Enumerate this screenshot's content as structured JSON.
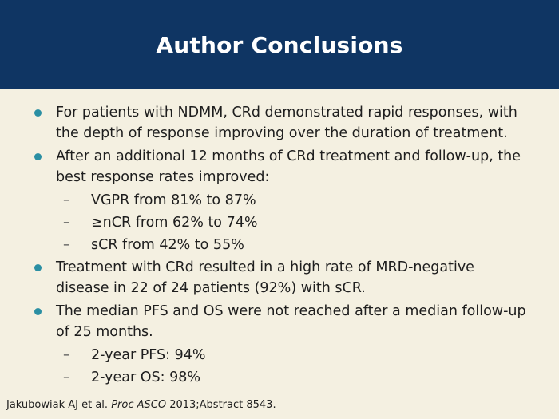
{
  "slide": {
    "title": "Author Conclusions",
    "bullets": [
      {
        "text": "For patients with NDMM, CRd demonstrated rapid responses, with the depth of response improving over the duration of treatment."
      },
      {
        "text": "After an additional 12 months of CRd treatment and follow-up, the best response rates improved:",
        "sub": [
          "VGPR from 81% to 87%",
          "≥nCR from 62% to 74%",
          "sCR from 42% to 55%"
        ]
      },
      {
        "text": "Treatment with CRd resulted in a high rate of MRD-negative disease in 22 of 24 patients (92%) with sCR."
      },
      {
        "text": "The median PFS and OS were not reached after a median follow-up of 25 months.",
        "sub": [
          "2-year PFS: 94%",
          "2-year OS: 98%"
        ]
      }
    ],
    "citation": {
      "authors": "Jakubowiak AJ et al.",
      "journal": "Proc ASCO",
      "details": "2013;Abstract 8543."
    },
    "colors": {
      "header_bg": "#0f3563",
      "page_bg": "#f4f0e1",
      "bullet": "#2a8fa3"
    }
  }
}
